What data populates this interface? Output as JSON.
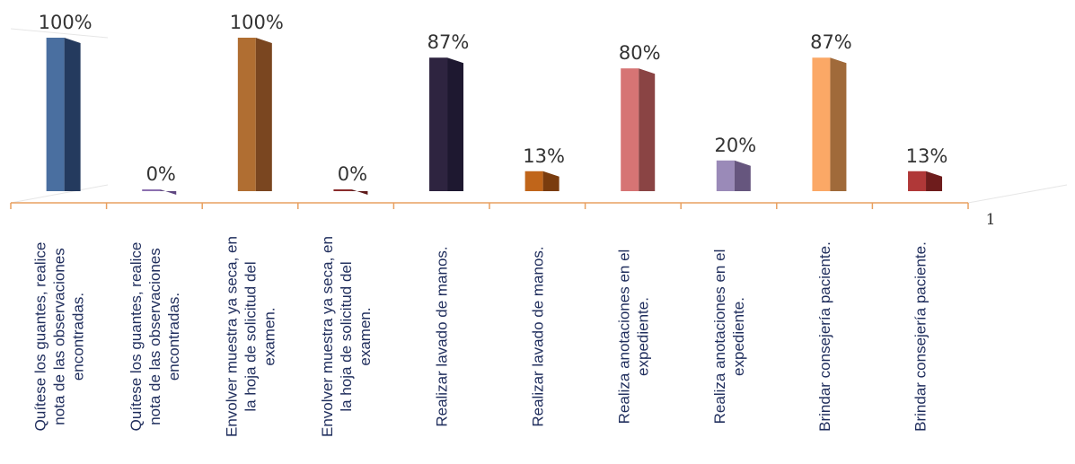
{
  "chart_data": {
    "type": "bar",
    "title": "",
    "xlabel": "",
    "ylabel": "",
    "ylim": [
      0,
      100
    ],
    "grid": false,
    "legend": "none",
    "categories": [
      "Quítese los guantes, realice nota de las observaciones encontradas.",
      "Quítese los guantes, realice nota de las observaciones encontradas.",
      "Envolver muestra ya seca, en la hoja de solicitud del examen.",
      "Envolver muestra ya seca, en la hoja de solicitud del examen.",
      "Realizar lavado de manos.",
      "Realizar lavado de manos.",
      "Realiza anotaciones en el expediente.",
      "Realiza anotaciones en el expediente.",
      "Brindar consejería paciente.",
      "Brindar consejería paciente."
    ],
    "category_lines": [
      [
        "Quítese los guantes, realice",
        "nota de las observaciones",
        "encontradas."
      ],
      [
        "Quítese los guantes, realice",
        "nota de las observaciones",
        "encontradas."
      ],
      [
        "Envolver muestra ya seca, en",
        "la hoja de solicitud del",
        "examen."
      ],
      [
        "Envolver muestra ya seca, en",
        "la hoja de solicitud del",
        "examen."
      ],
      [
        "Realizar lavado de manos."
      ],
      [
        "Realizar lavado de manos."
      ],
      [
        "Realiza anotaciones en el",
        "expediente."
      ],
      [
        "Realiza anotaciones en el",
        "expediente."
      ],
      [
        "Brindar consejería paciente."
      ],
      [
        "Brindar consejería paciente."
      ]
    ],
    "values": [
      100,
      0,
      100,
      0,
      87,
      13,
      80,
      20,
      87,
      13
    ],
    "labels": [
      "100%",
      "0%",
      "100%",
      "0%",
      "87%",
      "13%",
      "80%",
      "20%",
      "87%",
      "13%"
    ],
    "colors": [
      {
        "front": "#4a6fa0",
        "side": "#243a5e"
      },
      {
        "front": "#8c70b0",
        "side": "#5e4680"
      },
      {
        "front": "#b06e32",
        "side": "#7a4620"
      },
      {
        "front": "#8a2c2c",
        "side": "#5e1a1a"
      },
      {
        "front": "#2e2440",
        "side": "#1e1830"
      },
      {
        "front": "#c0651a",
        "side": "#7a3c0e"
      },
      {
        "front": "#d67474",
        "side": "#8a4444"
      },
      {
        "front": "#9a8ab8",
        "side": "#66567e"
      },
      {
        "front": "#fba866",
        "side": "#a06a3a"
      },
      {
        "front": "#b03838",
        "side": "#6e1c1c"
      }
    ],
    "extra_label": "1"
  }
}
